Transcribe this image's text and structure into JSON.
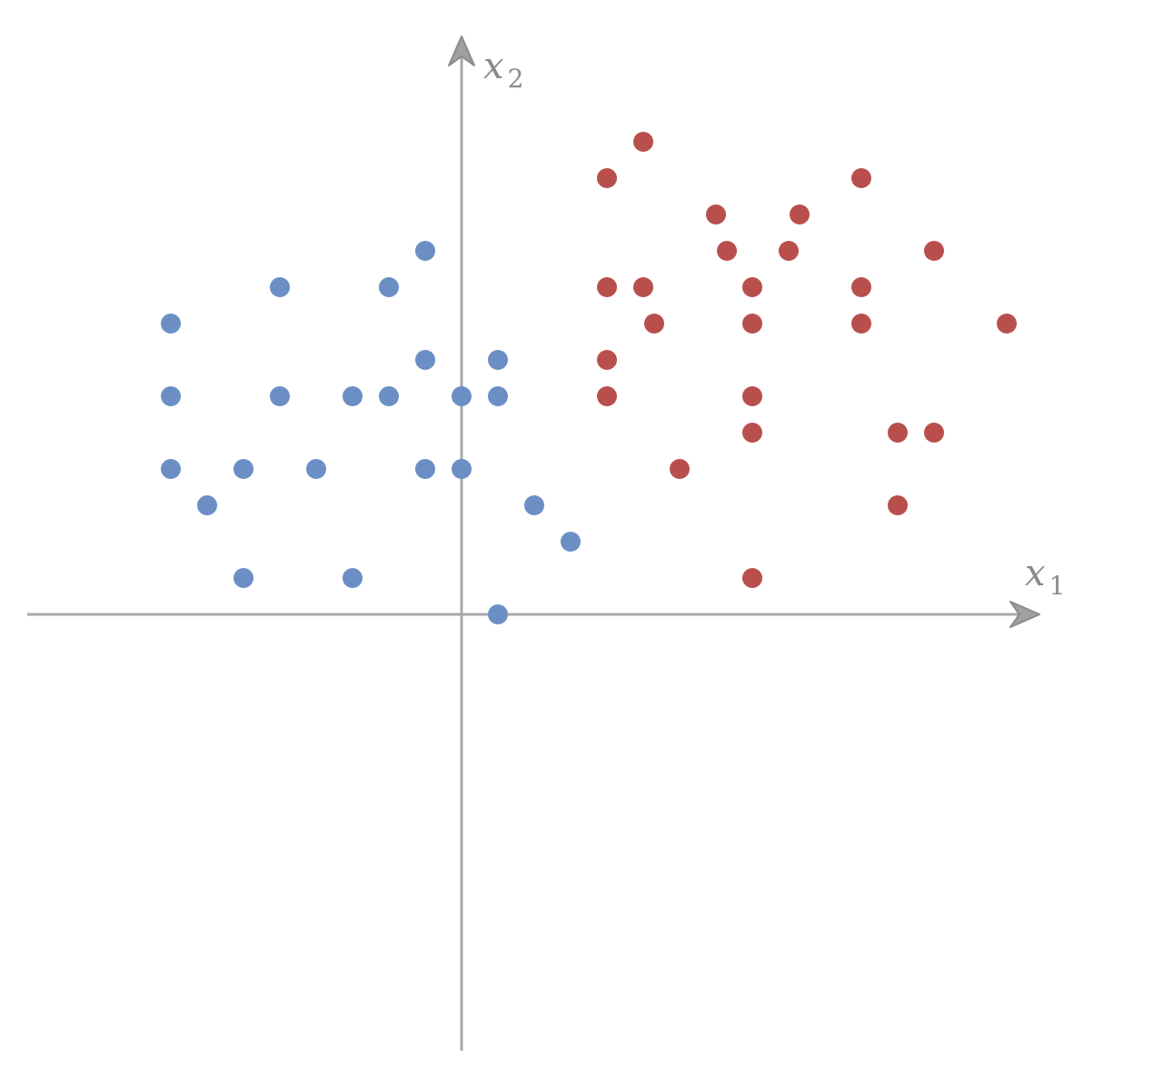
{
  "chart_data": {
    "type": "scatter",
    "xlabel": "x",
    "xlabel_sub": "1",
    "ylabel": "x",
    "ylabel_sub": "2",
    "grid": false,
    "legend": "none",
    "series": [
      {
        "color": "#6b8fc4",
        "points": [
          [
            -8,
            8
          ],
          [
            -8,
            6
          ],
          [
            -8,
            4
          ],
          [
            -7,
            3
          ],
          [
            -6,
            4
          ],
          [
            -6,
            1
          ],
          [
            -5,
            9
          ],
          [
            -5,
            6
          ],
          [
            -4,
            4
          ],
          [
            -3,
            6
          ],
          [
            -3,
            1
          ],
          [
            -2,
            9
          ],
          [
            -2,
            6
          ],
          [
            -1,
            10
          ],
          [
            -1,
            7
          ],
          [
            -1,
            4
          ],
          [
            0,
            6
          ],
          [
            0,
            4
          ],
          [
            1,
            7
          ],
          [
            1,
            6
          ],
          [
            1,
            0
          ],
          [
            2,
            3
          ],
          [
            3,
            2
          ]
        ]
      },
      {
        "color": "#b94f4c",
        "points": [
          [
            4,
            12
          ],
          [
            4,
            9
          ],
          [
            4,
            7
          ],
          [
            4,
            6
          ],
          [
            5,
            13
          ],
          [
            5,
            9
          ],
          [
            5.3,
            8
          ],
          [
            6,
            4
          ],
          [
            7,
            11
          ],
          [
            7.3,
            10
          ],
          [
            8,
            9
          ],
          [
            8,
            8
          ],
          [
            8,
            6
          ],
          [
            8,
            5
          ],
          [
            8,
            1
          ],
          [
            9,
            10
          ],
          [
            9.3,
            11
          ],
          [
            11,
            12
          ],
          [
            11,
            9
          ],
          [
            11,
            8
          ],
          [
            12,
            5
          ],
          [
            12,
            3
          ],
          [
            13,
            10
          ],
          [
            13,
            5
          ],
          [
            15,
            8
          ]
        ]
      }
    ]
  }
}
